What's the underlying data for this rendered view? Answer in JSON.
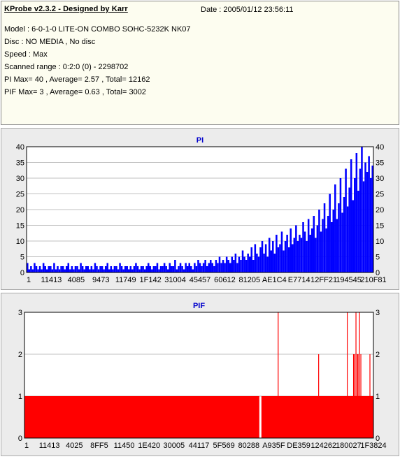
{
  "info": {
    "title": "KProbe v2.3.2 - Designed by Karr",
    "date": "Date : 2005/01/12 23:56:11",
    "lines": [
      "Model : 6-0-1-0 LITE-ON COMBO SOHC-5232K NK07",
      "Disc : NO MEDIA , No disc",
      "Speed : Max",
      "Scanned range : 0:2:0 (0) - 2298702",
      "PI Max= 40 , Average= 2.57 , Total= 12162",
      "PIF Max= 3 , Average= 0.63 , Total= 3002"
    ]
  },
  "colors": {
    "pi_fill": "#0000ff",
    "pif_fill": "#ff0000",
    "title_text": "#0000cc",
    "grid": "#c0c0c0",
    "plot_bg": "#ffffff",
    "panel_bg": "#ececec"
  },
  "chart_data": [
    {
      "type": "bar",
      "title": "PI",
      "ylim": [
        0,
        40
      ],
      "yticks": [
        0,
        5,
        10,
        15,
        20,
        25,
        30,
        35,
        40
      ],
      "xtick_labels": [
        "1",
        "11413",
        "4085",
        "9473",
        "11749",
        "1F142",
        "31004",
        "45457",
        "60612",
        "81205",
        "AE1C4",
        "E7714",
        "12FF21",
        "194545",
        "210F81"
      ],
      "grid": true,
      "color": "#0000ff",
      "series": [
        {
          "values": [
            3,
            1,
            2,
            1,
            3,
            2,
            1,
            2,
            1,
            3,
            2,
            1,
            2,
            2,
            1,
            3,
            1,
            2,
            1,
            2,
            2,
            1,
            2,
            3,
            1,
            2,
            1,
            2,
            2,
            1,
            3,
            2,
            1,
            2,
            2,
            1,
            2,
            1,
            3,
            2,
            1,
            2,
            2,
            1,
            2,
            3,
            1,
            2,
            1,
            2,
            2,
            1,
            3,
            2,
            1,
            2,
            2,
            1,
            2,
            1,
            2,
            3,
            2,
            1,
            2,
            2,
            1,
            2,
            3,
            2,
            1,
            2,
            2,
            3,
            1,
            2,
            2,
            3,
            2,
            1,
            3,
            2,
            2,
            4,
            1,
            2,
            3,
            2,
            1,
            3,
            2,
            3,
            2,
            1,
            3,
            2,
            4,
            3,
            2,
            3,
            4,
            2,
            3,
            4,
            3,
            2,
            4,
            3,
            5,
            3,
            4,
            3,
            5,
            4,
            3,
            5,
            4,
            6,
            3,
            5,
            4,
            7,
            5,
            4,
            6,
            5,
            8,
            4,
            9,
            6,
            5,
            8,
            10,
            6,
            9,
            5,
            11,
            7,
            10,
            6,
            12,
            8,
            9,
            13,
            7,
            10,
            12,
            8,
            14,
            9,
            11,
            15,
            10,
            12,
            11,
            16,
            13,
            10,
            17,
            12,
            14,
            18,
            11,
            15,
            20,
            13,
            17,
            22,
            14,
            18,
            25,
            16,
            20,
            28,
            17,
            22,
            30,
            19,
            24,
            33,
            21,
            27,
            36,
            23,
            30,
            38,
            26,
            33,
            40,
            29,
            35,
            32,
            37,
            30,
            34
          ]
        }
      ]
    },
    {
      "type": "bar",
      "title": "PIF",
      "ylim": [
        0,
        3
      ],
      "yticks": [
        0,
        1,
        2,
        3
      ],
      "xtick_labels": [
        "1",
        "11413",
        "4025",
        "8FF5",
        "11450",
        "1E420",
        "30005",
        "44117",
        "5F569",
        "80288",
        "A935F",
        "DE359",
        "124262",
        "180027",
        "1F3824"
      ],
      "grid": true,
      "color": "#ff0000",
      "baseline": 1,
      "baseline_gap": [
        0.673,
        0.679
      ],
      "spikes": [
        {
          "x": 0.727,
          "value": 3
        },
        {
          "x": 0.843,
          "value": 2
        },
        {
          "x": 0.925,
          "value": 3
        },
        {
          "x": 0.943,
          "value": 2
        },
        {
          "x": 0.946,
          "value": 2
        },
        {
          "x": 0.95,
          "value": 3
        },
        {
          "x": 0.954,
          "value": 2
        },
        {
          "x": 0.956,
          "value": 2
        },
        {
          "x": 0.96,
          "value": 3
        },
        {
          "x": 0.964,
          "value": 2
        },
        {
          "x": 0.99,
          "value": 2
        }
      ]
    }
  ]
}
